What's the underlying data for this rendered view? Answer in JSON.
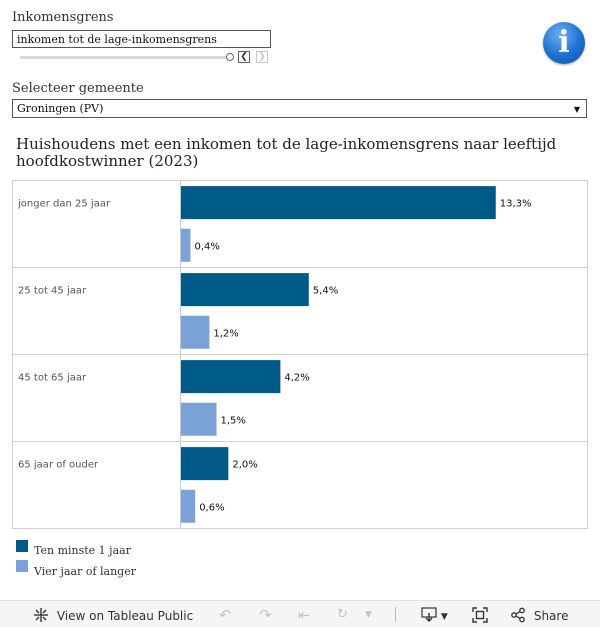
{
  "filters": {
    "income_label": "Inkomensgrens",
    "income_value": "inkomen tot de lage-inkomensgrens",
    "municipality_label": "Selecteer gemeente",
    "municipality_value": "Groningen (PV)"
  },
  "icons": {
    "info": "info-icon"
  },
  "toolbar": {
    "view_label": "View on Tableau Public",
    "share_label": "Share"
  },
  "colors": {
    "series_1": "#005a87",
    "series_2": "#7ba2d6"
  },
  "chart_data": {
    "type": "bar",
    "orientation": "horizontal",
    "title": "Huishoudens met een inkomen tot de lage-inkomensgrens naar leeftijd hoofdkostwinner (2023)",
    "categories": [
      "jonger dan 25 jaar",
      "25 tot 45 jaar",
      "45 tot 65 jaar",
      "65 jaar of ouder"
    ],
    "series": [
      {
        "name": "Ten minste 1 jaar",
        "values": [
          13.3,
          5.4,
          4.2,
          2.0
        ],
        "labels": [
          "13,3%",
          "5,4%",
          "4,2%",
          "2,0%"
        ]
      },
      {
        "name": "Vier jaar of langer",
        "values": [
          0.4,
          1.2,
          1.5,
          0.6
        ],
        "labels": [
          "0,4%",
          "1,2%",
          "1,5%",
          "0,6%"
        ]
      }
    ],
    "xlim": [
      0,
      15
    ],
    "legend_position": "bottom-left",
    "grid": false
  }
}
